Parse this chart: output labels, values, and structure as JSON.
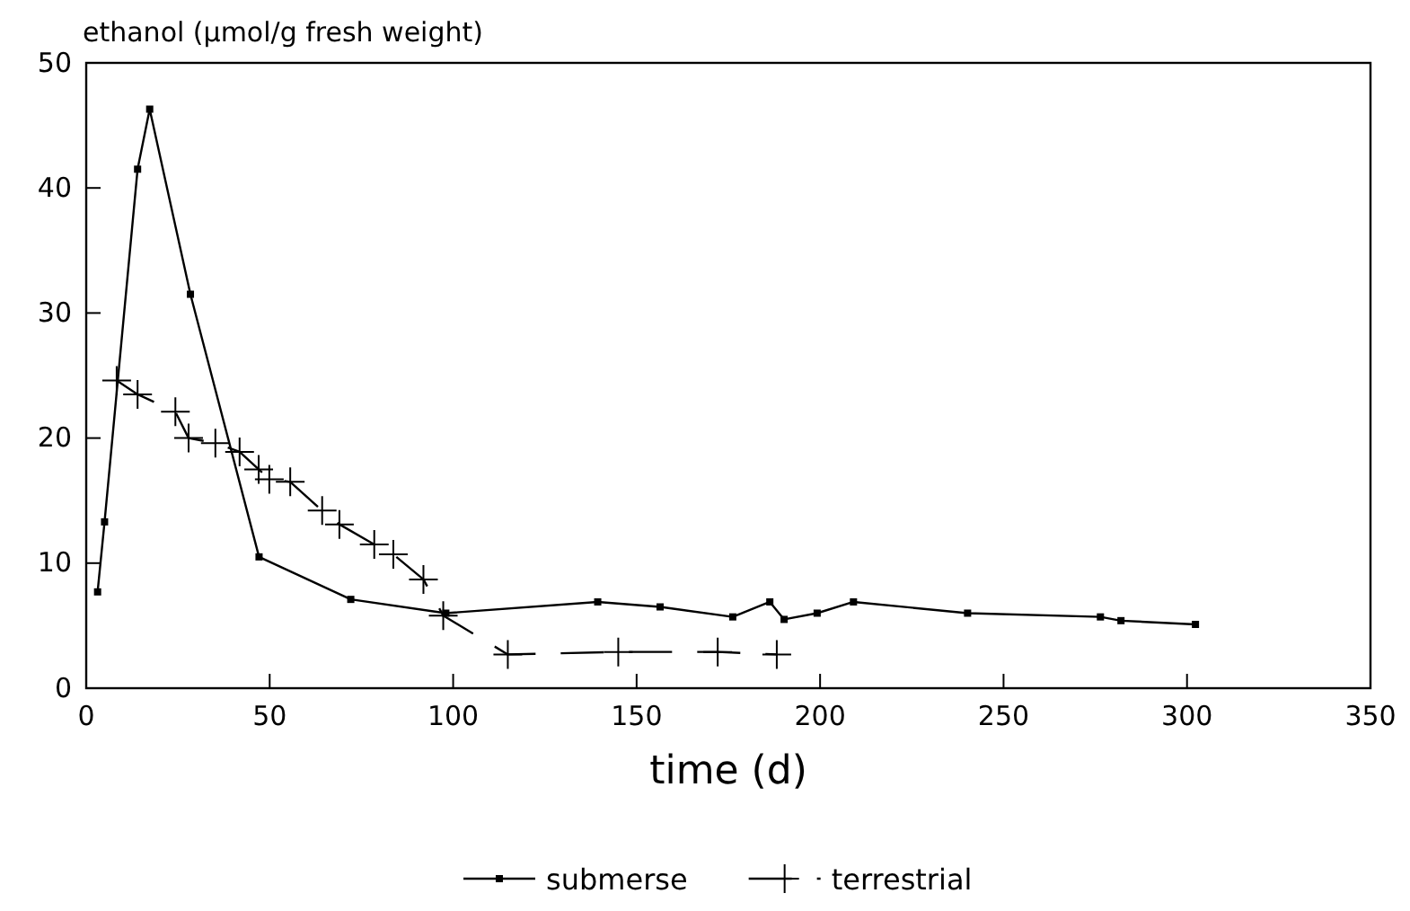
{
  "chart_data": {
    "type": "line",
    "xlabel": "time (d)",
    "ylabel": "ethanol (µmol/g fresh weight)",
    "xlim": [
      0,
      350
    ],
    "xticks": [
      0,
      50,
      100,
      150,
      200,
      250,
      300,
      350
    ],
    "ylim": [
      0,
      50
    ],
    "yticks": [
      0,
      10,
      20,
      30,
      40,
      50
    ],
    "grid": false,
    "legend": "bottom",
    "series": [
      {
        "name": "submerse",
        "color": "#000000",
        "marker": "square",
        "line_style": "solid",
        "x": [
          3.1,
          5,
          14,
          17.3,
          28.4,
          47.1,
          72.1,
          98,
          139.4,
          156.4,
          176.2,
          186.3,
          190.2,
          199.2,
          209.1,
          240.2,
          276.4,
          282,
          302.3
        ],
        "values": [
          7.7,
          13.3,
          41.5,
          46.3,
          31.5,
          10.5,
          7.1,
          6.0,
          6.9,
          6.5,
          5.7,
          6.9,
          5.5,
          6.0,
          6.9,
          6.0,
          5.7,
          5.4,
          5.1
        ]
      },
      {
        "name": "terrestrial",
        "color": "#000000",
        "marker": "cross",
        "line_style": "dashed",
        "x": [
          8.3,
          14,
          24.3,
          27.9,
          35.2,
          41.8,
          47,
          49.9,
          55.6,
          64.3,
          69,
          78.5,
          83.7,
          91.9,
          97.3,
          114.9,
          145,
          172.1,
          188.2
        ],
        "values": [
          24.6,
          23.5,
          22.1,
          20.0,
          19.6,
          18.9,
          17.5,
          16.7,
          16.5,
          14.2,
          13.1,
          11.5,
          10.7,
          8.7,
          5.8,
          2.7,
          2.9,
          2.9,
          2.7
        ]
      }
    ]
  }
}
